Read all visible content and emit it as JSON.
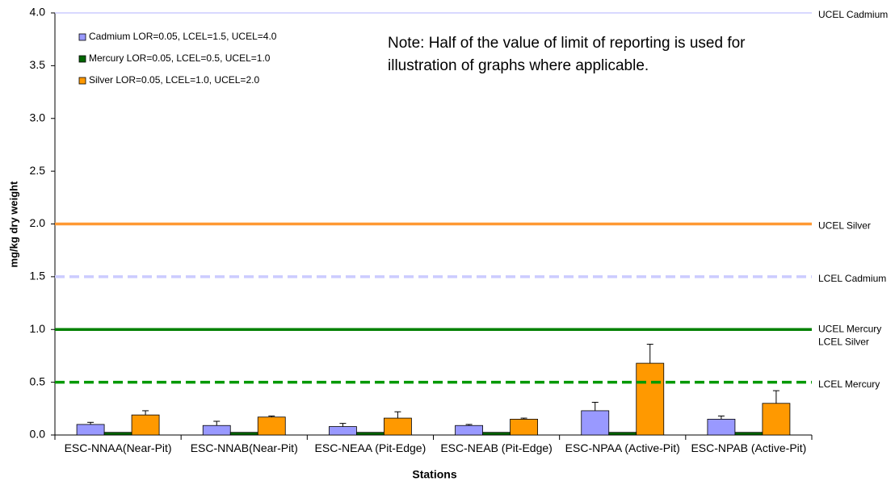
{
  "chart_data": {
    "type": "bar",
    "x_label": "Stations",
    "y_label": "mg/kg dry weight",
    "note": "Note: Half of the value of limit of reporting is used for illustration of graphs where applicable.",
    "categories": [
      "ESC-NNAA(Near-Pit)",
      "ESC-NNAB(Near-Pit)",
      "ESC-NEAA (Pit-Edge)",
      "ESC-NEAB (Pit-Edge)",
      "ESC-NPAA (Active-Pit)",
      "ESC-NPAB (Active-Pit)"
    ],
    "series": [
      {
        "name": "Cadmium LOR=0.05, LCEL=1.5, UCEL=4.0",
        "color": "#9999ff",
        "values": [
          0.1,
          0.09,
          0.08,
          0.09,
          0.23,
          0.15
        ],
        "errors": [
          0.02,
          0.04,
          0.03,
          0.01,
          0.08,
          0.03
        ]
      },
      {
        "name": "Mercury LOR=0.05, LCEL=0.5, UCEL=1.0",
        "color": "#006600",
        "values": [
          0.025,
          0.025,
          0.025,
          0.025,
          0.025,
          0.025
        ]
      },
      {
        "name": "Silver LOR=0.05, LCEL=1.0, UCEL=2.0",
        "color": "#ff9900",
        "values": [
          0.19,
          0.17,
          0.16,
          0.15,
          0.68,
          0.3
        ],
        "errors": [
          0.04,
          0.01,
          0.06,
          0.01,
          0.18,
          0.12
        ]
      }
    ],
    "reference_lines": [
      {
        "label": "UCEL Cadmium",
        "value": 4.0,
        "color": "#ccccff",
        "style": "solid"
      },
      {
        "label": "UCEL Silver",
        "value": 2.0,
        "color": "#ff9933",
        "style": "solid"
      },
      {
        "label": "LCEL Cadmium",
        "value": 1.5,
        "color": "#ccccff",
        "style": "dashed"
      },
      {
        "label": "LCEL Silver",
        "value": 1.0,
        "color": "#cc9933",
        "style": "dashed"
      },
      {
        "label": "UCEL Mercury",
        "value": 1.0,
        "color": "#008000",
        "style": "solid"
      },
      {
        "label": "LCEL Mercury",
        "value": 0.5,
        "color": "#009900",
        "style": "dashed"
      }
    ],
    "ylim": [
      0,
      4
    ],
    "yticks": [
      {
        "value": 0,
        "label": "0.0"
      },
      {
        "value": 0.5,
        "label": "0.5"
      },
      {
        "value": 1,
        "label": "1.0"
      },
      {
        "value": 1.5,
        "label": "1.5"
      },
      {
        "value": 2,
        "label": "2.0"
      },
      {
        "value": 2.5,
        "label": "2.5"
      },
      {
        "value": 3,
        "label": "3.0"
      },
      {
        "value": 3.5,
        "label": "3.5"
      },
      {
        "value": 4,
        "label": "4.0"
      }
    ],
    "legend": "upper left"
  }
}
